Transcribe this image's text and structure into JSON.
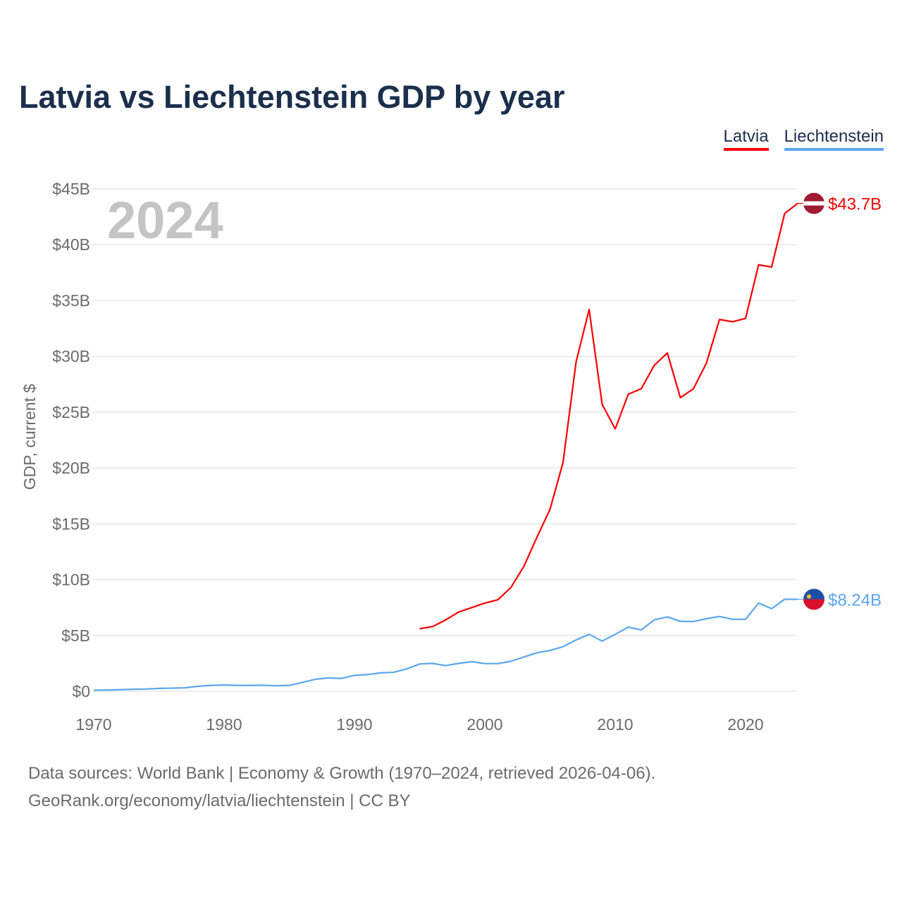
{
  "title": "Latvia vs Liechtenstein GDP by year",
  "legend": [
    {
      "label": "Latvia",
      "color": "#ff0000"
    },
    {
      "label": "Liechtenstein",
      "color": "#5ba7ee"
    }
  ],
  "current_year": "2024",
  "footer": {
    "line1": "Data sources: World Bank | Economy & Growth (1970–2024, retrieved 2026-04-06).",
    "line2": "GeoRank.org/economy/latvia/liechtenstein | CC BY"
  },
  "chart_data": {
    "type": "line",
    "title": "Latvia vs Liechtenstein GDP by year",
    "xlabel": "",
    "ylabel": "GDP, current $",
    "xlim": [
      1970,
      2024
    ],
    "ylim": [
      0,
      45
    ],
    "x_ticks": [
      1970,
      1980,
      1990,
      2000,
      2010,
      2020
    ],
    "y_ticks": [
      0,
      5,
      10,
      15,
      20,
      25,
      30,
      35,
      40,
      45
    ],
    "y_tick_labels": [
      "$0",
      "$5B",
      "$10B",
      "$15B",
      "$20B",
      "$25B",
      "$30B",
      "$35B",
      "$40B",
      "$45B"
    ],
    "grid": true,
    "legend_position": "top-right",
    "series": [
      {
        "name": "Latvia",
        "color": "#ff0000",
        "end_label": "$43.7B",
        "x": [
          1995,
          1996,
          1997,
          1998,
          1999,
          2000,
          2001,
          2002,
          2003,
          2004,
          2005,
          2006,
          2007,
          2008,
          2009,
          2010,
          2011,
          2012,
          2013,
          2014,
          2015,
          2016,
          2017,
          2018,
          2019,
          2020,
          2021,
          2022,
          2023,
          2024
        ],
        "values": [
          5.6,
          5.8,
          6.4,
          7.1,
          7.5,
          7.9,
          8.2,
          9.3,
          11.2,
          13.8,
          16.3,
          20.5,
          29.5,
          34.2,
          25.7,
          23.5,
          26.6,
          27.1,
          29.2,
          30.3,
          26.3,
          27.1,
          29.4,
          33.3,
          33.1,
          33.4,
          38.2,
          38.0,
          42.8,
          43.7
        ]
      },
      {
        "name": "Liechtenstein",
        "color": "#5ba7ee",
        "end_label": "$8.24B",
        "x": [
          1970,
          1971,
          1972,
          1973,
          1974,
          1975,
          1976,
          1977,
          1978,
          1979,
          1980,
          1981,
          1982,
          1983,
          1984,
          1985,
          1986,
          1987,
          1988,
          1989,
          1990,
          1991,
          1992,
          1993,
          1994,
          1995,
          1996,
          1997,
          1998,
          1999,
          2000,
          2001,
          2002,
          2003,
          2004,
          2005,
          2006,
          2007,
          2008,
          2009,
          2010,
          2011,
          2012,
          2013,
          2014,
          2015,
          2016,
          2017,
          2018,
          2019,
          2020,
          2021,
          2022,
          2023,
          2024
        ],
        "values": [
          0.1,
          0.12,
          0.14,
          0.18,
          0.2,
          0.26,
          0.28,
          0.31,
          0.45,
          0.53,
          0.56,
          0.53,
          0.53,
          0.54,
          0.5,
          0.53,
          0.79,
          1.08,
          1.2,
          1.15,
          1.43,
          1.5,
          1.65,
          1.7,
          2.0,
          2.45,
          2.5,
          2.3,
          2.5,
          2.65,
          2.48,
          2.48,
          2.69,
          3.07,
          3.45,
          3.66,
          4.0,
          4.6,
          5.1,
          4.5,
          5.1,
          5.75,
          5.5,
          6.4,
          6.66,
          6.27,
          6.25,
          6.5,
          6.7,
          6.45,
          6.45,
          7.9,
          7.4,
          8.24,
          8.24
        ]
      }
    ]
  }
}
